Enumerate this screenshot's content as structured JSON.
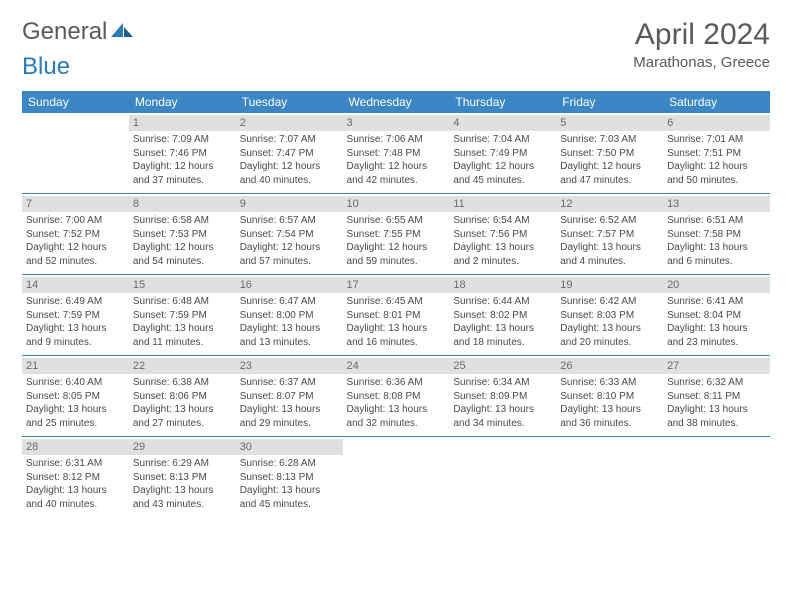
{
  "brand": {
    "word1": "General",
    "word2": "Blue"
  },
  "title": "April 2024",
  "location": "Marathonas, Greece",
  "colors": {
    "header_bg": "#3b86c4",
    "header_text": "#ffffff",
    "daynum_bg": "#e0e0e0",
    "daynum_text": "#6a6a6a",
    "body_text": "#4a4a4a",
    "brand_gray": "#5a5a5a",
    "brand_blue": "#2a7ab8",
    "week_border": "#3b86c4"
  },
  "weekdays": [
    "Sunday",
    "Monday",
    "Tuesday",
    "Wednesday",
    "Thursday",
    "Friday",
    "Saturday"
  ],
  "weeks": [
    [
      null,
      {
        "n": "1",
        "sr": "Sunrise: 7:09 AM",
        "ss": "Sunset: 7:46 PM",
        "d1": "Daylight: 12 hours",
        "d2": "and 37 minutes."
      },
      {
        "n": "2",
        "sr": "Sunrise: 7:07 AM",
        "ss": "Sunset: 7:47 PM",
        "d1": "Daylight: 12 hours",
        "d2": "and 40 minutes."
      },
      {
        "n": "3",
        "sr": "Sunrise: 7:06 AM",
        "ss": "Sunset: 7:48 PM",
        "d1": "Daylight: 12 hours",
        "d2": "and 42 minutes."
      },
      {
        "n": "4",
        "sr": "Sunrise: 7:04 AM",
        "ss": "Sunset: 7:49 PM",
        "d1": "Daylight: 12 hours",
        "d2": "and 45 minutes."
      },
      {
        "n": "5",
        "sr": "Sunrise: 7:03 AM",
        "ss": "Sunset: 7:50 PM",
        "d1": "Daylight: 12 hours",
        "d2": "and 47 minutes."
      },
      {
        "n": "6",
        "sr": "Sunrise: 7:01 AM",
        "ss": "Sunset: 7:51 PM",
        "d1": "Daylight: 12 hours",
        "d2": "and 50 minutes."
      }
    ],
    [
      {
        "n": "7",
        "sr": "Sunrise: 7:00 AM",
        "ss": "Sunset: 7:52 PM",
        "d1": "Daylight: 12 hours",
        "d2": "and 52 minutes."
      },
      {
        "n": "8",
        "sr": "Sunrise: 6:58 AM",
        "ss": "Sunset: 7:53 PM",
        "d1": "Daylight: 12 hours",
        "d2": "and 54 minutes."
      },
      {
        "n": "9",
        "sr": "Sunrise: 6:57 AM",
        "ss": "Sunset: 7:54 PM",
        "d1": "Daylight: 12 hours",
        "d2": "and 57 minutes."
      },
      {
        "n": "10",
        "sr": "Sunrise: 6:55 AM",
        "ss": "Sunset: 7:55 PM",
        "d1": "Daylight: 12 hours",
        "d2": "and 59 minutes."
      },
      {
        "n": "11",
        "sr": "Sunrise: 6:54 AM",
        "ss": "Sunset: 7:56 PM",
        "d1": "Daylight: 13 hours",
        "d2": "and 2 minutes."
      },
      {
        "n": "12",
        "sr": "Sunrise: 6:52 AM",
        "ss": "Sunset: 7:57 PM",
        "d1": "Daylight: 13 hours",
        "d2": "and 4 minutes."
      },
      {
        "n": "13",
        "sr": "Sunrise: 6:51 AM",
        "ss": "Sunset: 7:58 PM",
        "d1": "Daylight: 13 hours",
        "d2": "and 6 minutes."
      }
    ],
    [
      {
        "n": "14",
        "sr": "Sunrise: 6:49 AM",
        "ss": "Sunset: 7:59 PM",
        "d1": "Daylight: 13 hours",
        "d2": "and 9 minutes."
      },
      {
        "n": "15",
        "sr": "Sunrise: 6:48 AM",
        "ss": "Sunset: 7:59 PM",
        "d1": "Daylight: 13 hours",
        "d2": "and 11 minutes."
      },
      {
        "n": "16",
        "sr": "Sunrise: 6:47 AM",
        "ss": "Sunset: 8:00 PM",
        "d1": "Daylight: 13 hours",
        "d2": "and 13 minutes."
      },
      {
        "n": "17",
        "sr": "Sunrise: 6:45 AM",
        "ss": "Sunset: 8:01 PM",
        "d1": "Daylight: 13 hours",
        "d2": "and 16 minutes."
      },
      {
        "n": "18",
        "sr": "Sunrise: 6:44 AM",
        "ss": "Sunset: 8:02 PM",
        "d1": "Daylight: 13 hours",
        "d2": "and 18 minutes."
      },
      {
        "n": "19",
        "sr": "Sunrise: 6:42 AM",
        "ss": "Sunset: 8:03 PM",
        "d1": "Daylight: 13 hours",
        "d2": "and 20 minutes."
      },
      {
        "n": "20",
        "sr": "Sunrise: 6:41 AM",
        "ss": "Sunset: 8:04 PM",
        "d1": "Daylight: 13 hours",
        "d2": "and 23 minutes."
      }
    ],
    [
      {
        "n": "21",
        "sr": "Sunrise: 6:40 AM",
        "ss": "Sunset: 8:05 PM",
        "d1": "Daylight: 13 hours",
        "d2": "and 25 minutes."
      },
      {
        "n": "22",
        "sr": "Sunrise: 6:38 AM",
        "ss": "Sunset: 8:06 PM",
        "d1": "Daylight: 13 hours",
        "d2": "and 27 minutes."
      },
      {
        "n": "23",
        "sr": "Sunrise: 6:37 AM",
        "ss": "Sunset: 8:07 PM",
        "d1": "Daylight: 13 hours",
        "d2": "and 29 minutes."
      },
      {
        "n": "24",
        "sr": "Sunrise: 6:36 AM",
        "ss": "Sunset: 8:08 PM",
        "d1": "Daylight: 13 hours",
        "d2": "and 32 minutes."
      },
      {
        "n": "25",
        "sr": "Sunrise: 6:34 AM",
        "ss": "Sunset: 8:09 PM",
        "d1": "Daylight: 13 hours",
        "d2": "and 34 minutes."
      },
      {
        "n": "26",
        "sr": "Sunrise: 6:33 AM",
        "ss": "Sunset: 8:10 PM",
        "d1": "Daylight: 13 hours",
        "d2": "and 36 minutes."
      },
      {
        "n": "27",
        "sr": "Sunrise: 6:32 AM",
        "ss": "Sunset: 8:11 PM",
        "d1": "Daylight: 13 hours",
        "d2": "and 38 minutes."
      }
    ],
    [
      {
        "n": "28",
        "sr": "Sunrise: 6:31 AM",
        "ss": "Sunset: 8:12 PM",
        "d1": "Daylight: 13 hours",
        "d2": "and 40 minutes."
      },
      {
        "n": "29",
        "sr": "Sunrise: 6:29 AM",
        "ss": "Sunset: 8:13 PM",
        "d1": "Daylight: 13 hours",
        "d2": "and 43 minutes."
      },
      {
        "n": "30",
        "sr": "Sunrise: 6:28 AM",
        "ss": "Sunset: 8:13 PM",
        "d1": "Daylight: 13 hours",
        "d2": "and 45 minutes."
      },
      null,
      null,
      null,
      null
    ]
  ]
}
